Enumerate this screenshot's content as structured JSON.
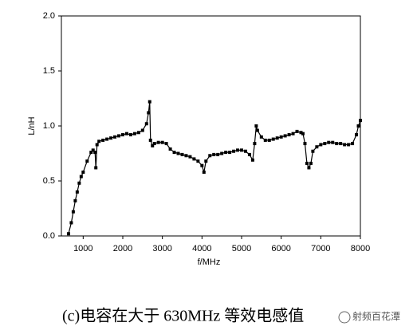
{
  "chart_data": {
    "type": "line",
    "x_label": "f/MHz",
    "y_label": "L/nH",
    "color": "#000000",
    "xlim": [
      450,
      8000
    ],
    "ylim": [
      0,
      2
    ],
    "xticks": [
      1000,
      2000,
      3000,
      4000,
      5000,
      6000,
      7000,
      8000
    ],
    "yticks": [
      {
        "value": 0,
        "label": "0.0"
      },
      0.5,
      {
        "value": 1,
        "label": "1.0"
      },
      1.5,
      {
        "value": 2,
        "label": "2.0"
      }
    ],
    "x": [
      630,
      700,
      750,
      800,
      850,
      900,
      950,
      1000,
      1100,
      1200,
      1250,
      1300,
      1320,
      1350,
      1400,
      1500,
      1600,
      1700,
      1800,
      1900,
      2000,
      2100,
      2200,
      2300,
      2400,
      2500,
      2600,
      2650,
      2680,
      2700,
      2750,
      2800,
      2900,
      3000,
      3100,
      3200,
      3300,
      3400,
      3500,
      3600,
      3700,
      3800,
      3900,
      4000,
      4050,
      4100,
      4200,
      4300,
      4400,
      4500,
      4600,
      4700,
      4800,
      4900,
      5000,
      5100,
      5200,
      5280,
      5330,
      5370,
      5400,
      5500,
      5600,
      5700,
      5800,
      5900,
      6000,
      6100,
      6200,
      6300,
      6400,
      6500,
      6550,
      6600,
      6650,
      6700,
      6750,
      6800,
      6900,
      7000,
      7100,
      7200,
      7300,
      7400,
      7500,
      7600,
      7700,
      7800,
      7900,
      7950,
      8000
    ],
    "values": [
      0.02,
      0.12,
      0.22,
      0.32,
      0.4,
      0.48,
      0.54,
      0.58,
      0.68,
      0.76,
      0.78,
      0.76,
      0.62,
      0.83,
      0.86,
      0.87,
      0.88,
      0.89,
      0.9,
      0.91,
      0.92,
      0.93,
      0.92,
      0.93,
      0.94,
      0.96,
      1.02,
      1.12,
      1.22,
      0.87,
      0.82,
      0.84,
      0.85,
      0.85,
      0.84,
      0.79,
      0.76,
      0.75,
      0.74,
      0.73,
      0.72,
      0.7,
      0.68,
      0.64,
      0.58,
      0.68,
      0.73,
      0.74,
      0.74,
      0.75,
      0.76,
      0.76,
      0.77,
      0.78,
      0.78,
      0.77,
      0.74,
      0.69,
      0.84,
      1.0,
      0.96,
      0.9,
      0.87,
      0.87,
      0.88,
      0.89,
      0.9,
      0.91,
      0.92,
      0.93,
      0.95,
      0.94,
      0.93,
      0.84,
      0.66,
      0.62,
      0.66,
      0.77,
      0.81,
      0.83,
      0.84,
      0.85,
      0.85,
      0.84,
      0.84,
      0.83,
      0.83,
      0.84,
      0.92,
      1.0,
      1.05
    ]
  },
  "caption": "(c)电容在大于 630MHz 等效电感值",
  "watermark": "射频百花潭"
}
